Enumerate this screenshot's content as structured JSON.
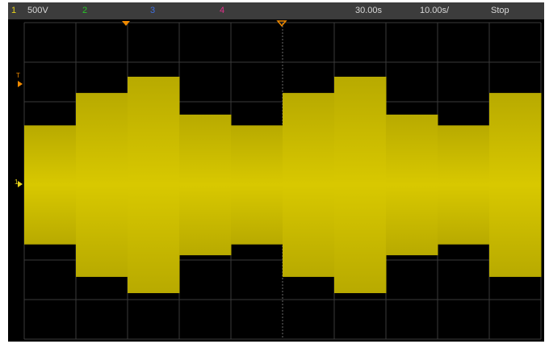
{
  "status_bar": {
    "ch1": {
      "label": "1",
      "scale": "500V",
      "color": "#e6d21a"
    },
    "ch2": {
      "label": "2",
      "color": "#27c427"
    },
    "ch3": {
      "label": "3",
      "color": "#3f6fe0"
    },
    "ch4": {
      "label": "4",
      "color": "#e0308a"
    },
    "delay": "30.00s",
    "timebase": "10.00s/",
    "run_state": "Stop"
  },
  "markers": {
    "trigger_level": "T",
    "ch1_ground": "1",
    "marker_color": "#f08a00"
  },
  "waveform": {
    "color": "#d2c400",
    "segment_levels": [
      0.55,
      0.85,
      1.0,
      0.65,
      0.55,
      0.85,
      1.0,
      0.65,
      0.55,
      0.85
    ]
  },
  "display": {
    "grid_divisions_x": 10,
    "grid_divisions_y": 8,
    "grid_color": "#3a3a3a"
  }
}
